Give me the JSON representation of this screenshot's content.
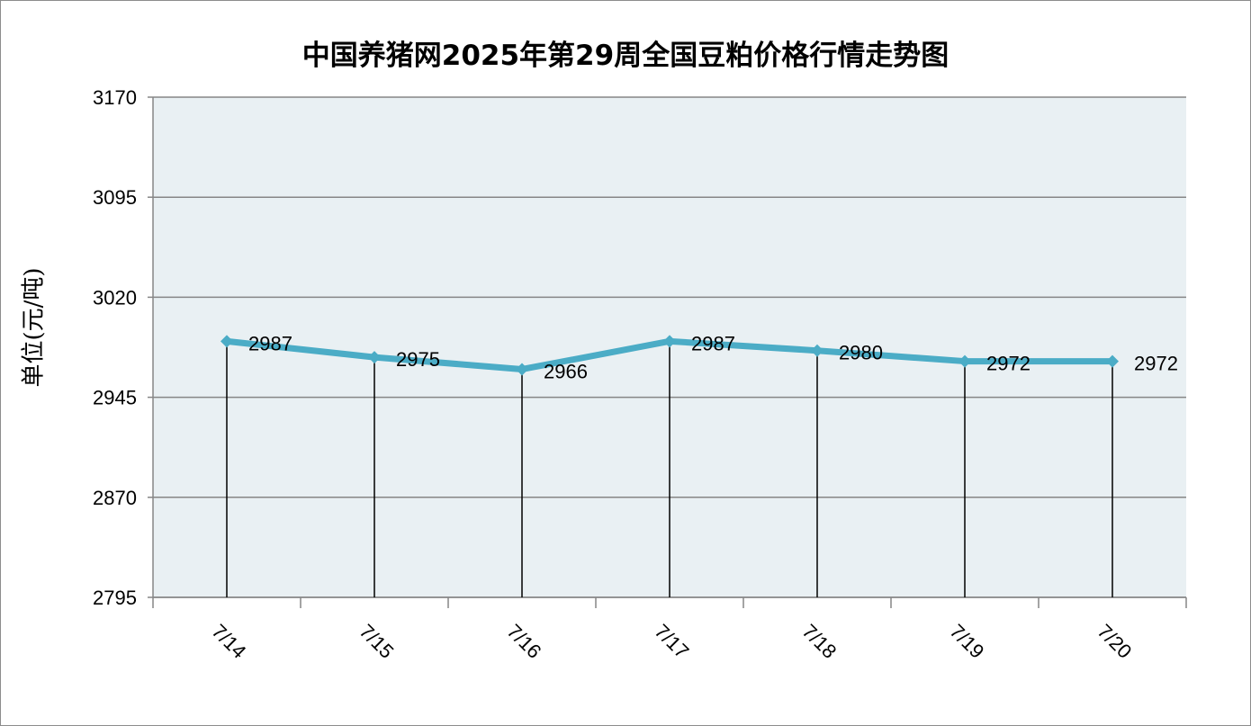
{
  "chart_data": {
    "type": "line",
    "title": "中国养猪网2025年第29周全国豆粕价格行情走势图",
    "ylabel": "单位(元/吨)",
    "xlabel": "",
    "categories": [
      "7/14",
      "7/15",
      "7/16",
      "7/17",
      "7/18",
      "7/19",
      "7/20"
    ],
    "series": [
      {
        "values": [
          2987,
          2975,
          2966,
          2987,
          2980,
          2972,
          2972
        ]
      }
    ],
    "data_labels": [
      "2987",
      "2975",
      "2966",
      "2987",
      "2980",
      "2972",
      "2972"
    ],
    "ylim": [
      2795,
      3170
    ],
    "yticks": [
      "3170",
      "3095",
      "3020",
      "2945",
      "2870",
      "2795"
    ],
    "ytick_values": [
      3170,
      3095,
      3020,
      2945,
      2870,
      2795
    ],
    "grid": true,
    "drop_lines": true,
    "colors": {
      "line": "#4bacc6",
      "plot_background": "#e9f0f3",
      "gridline": "#868686",
      "axis": "#868686",
      "drop_line": "#000000"
    }
  }
}
